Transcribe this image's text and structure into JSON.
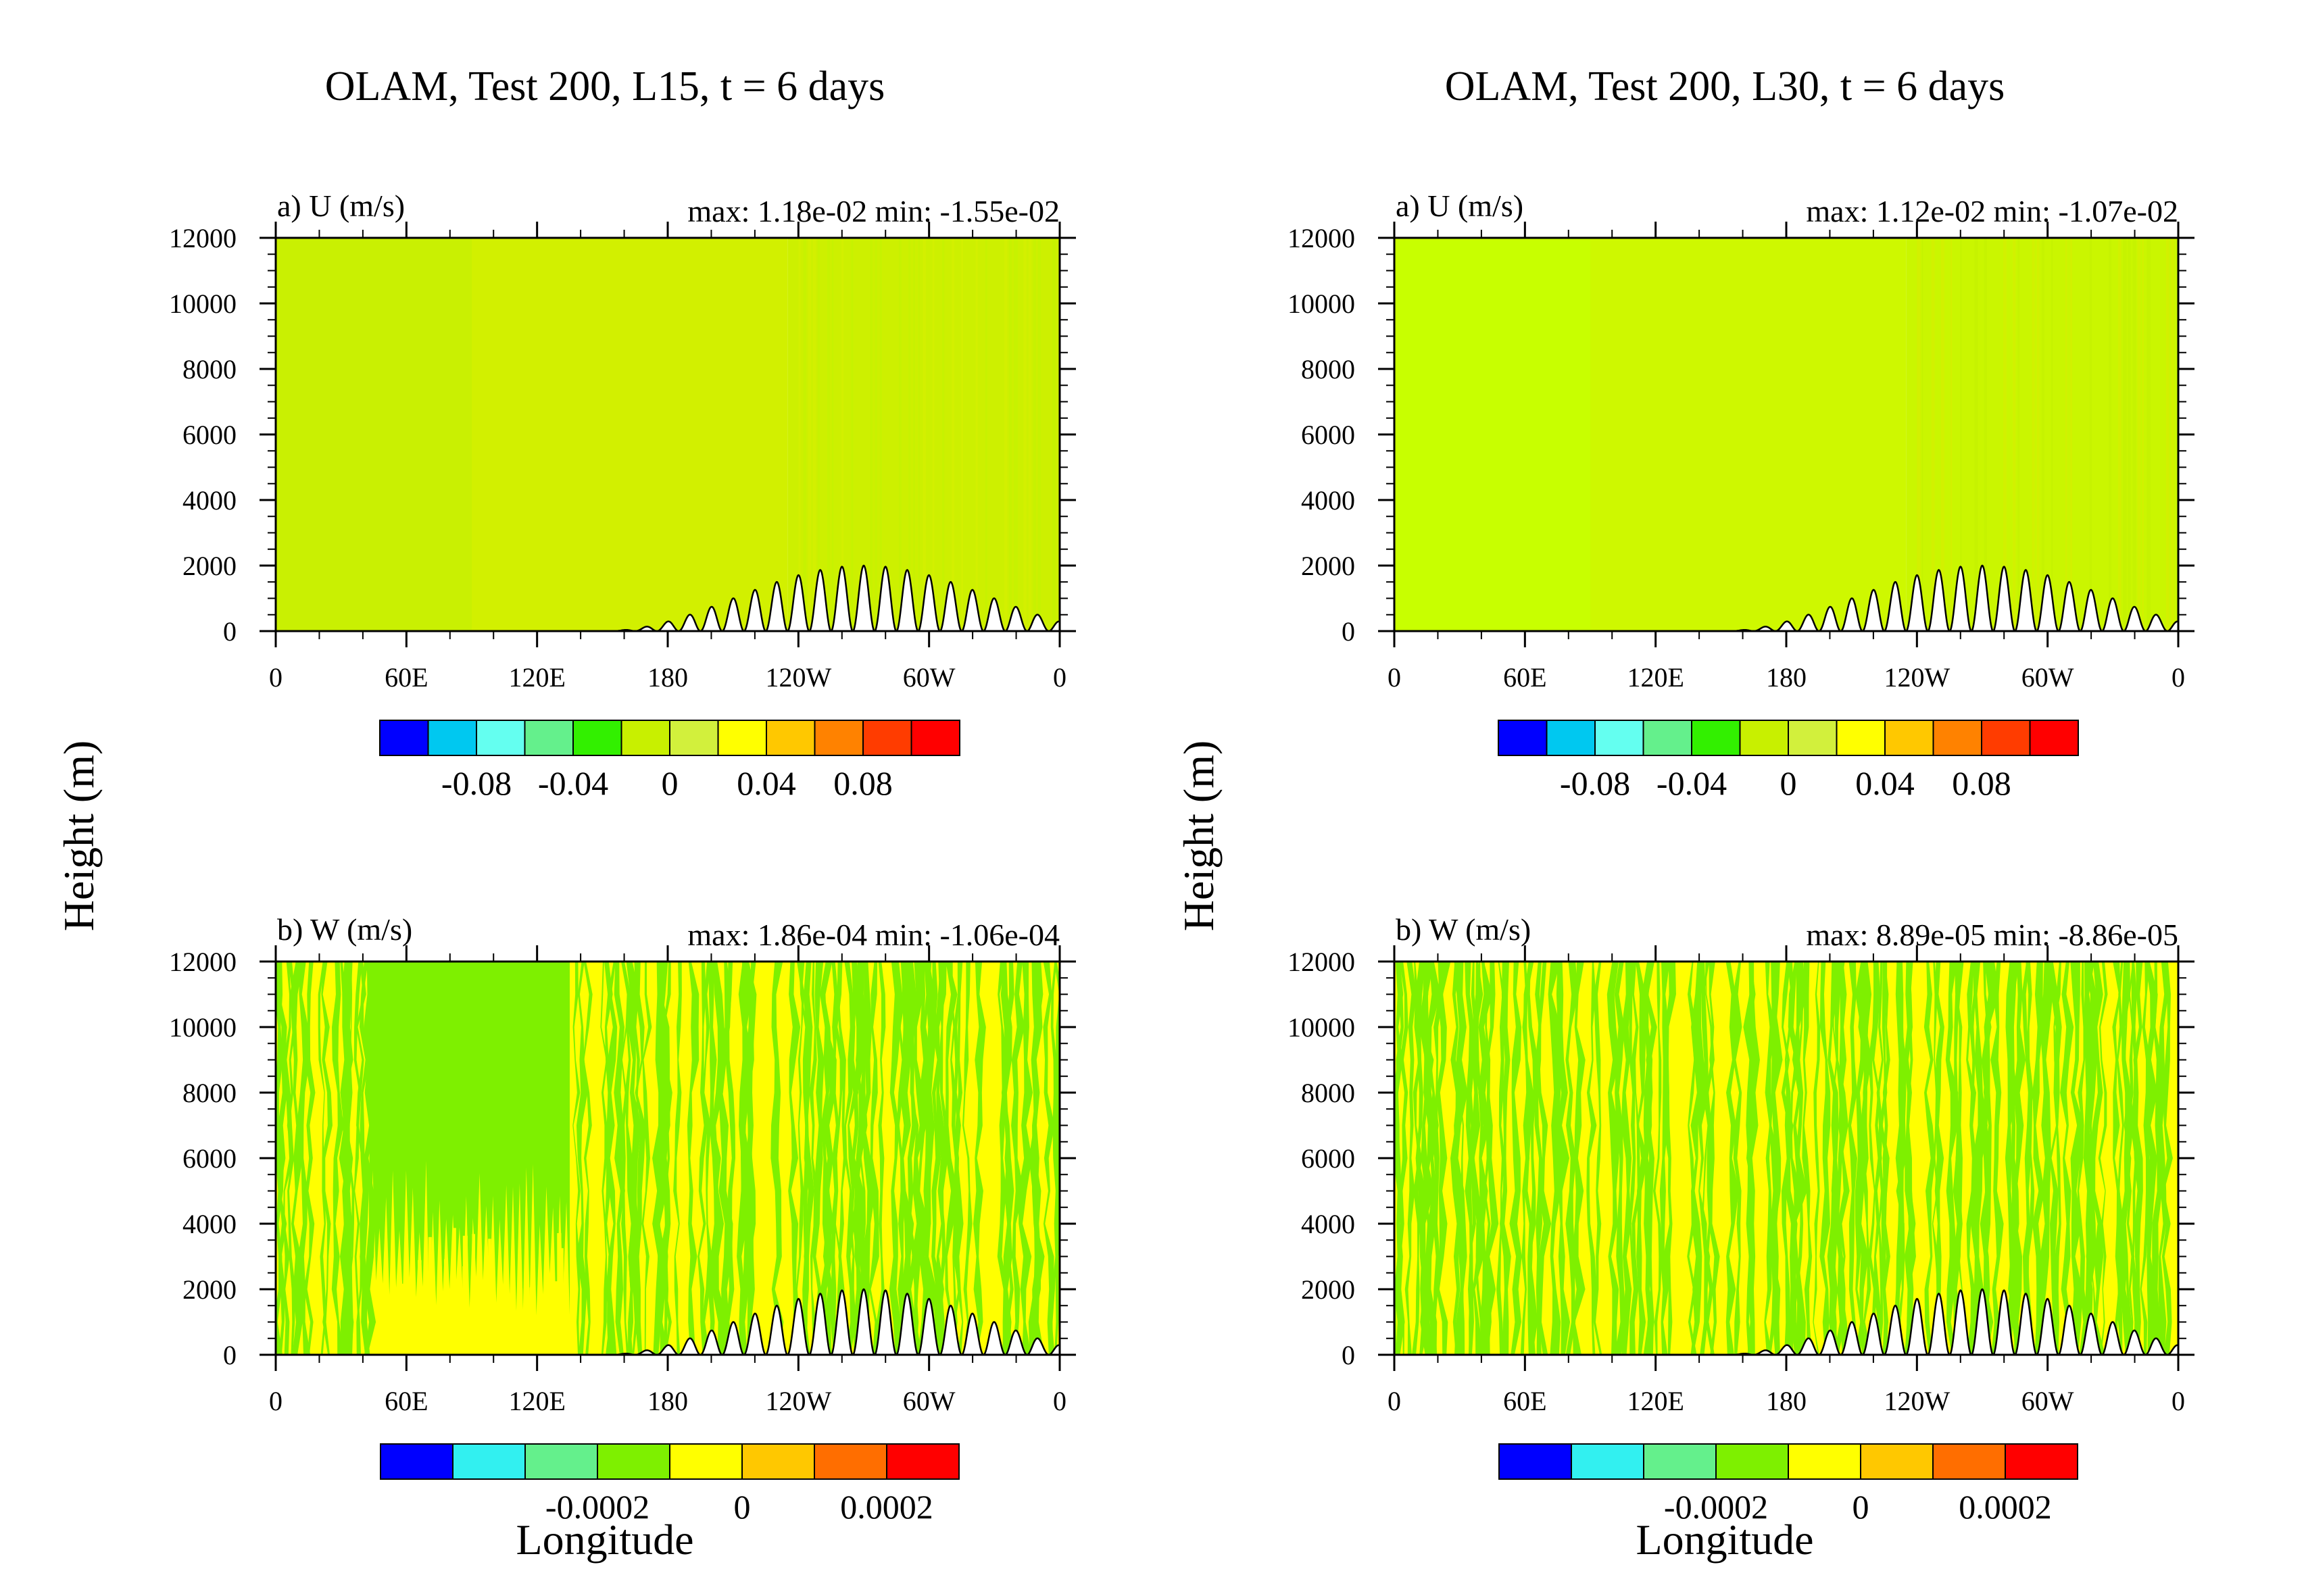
{
  "figure": {
    "columns": [
      {
        "title": "OLAM, Test 200, L15, t = 6 days",
        "ylabel": "Height (m)",
        "xlabel": "Longitude"
      },
      {
        "title": "OLAM, Test 200, L30, t = 6 days",
        "ylabel": "Height (m)",
        "xlabel": "Longitude"
      }
    ]
  },
  "chart_data": [
    {
      "type": "heatmap",
      "column": 0,
      "row": 0,
      "panel_label": "a) U (m/s)",
      "stats": "max: 1.18e-02 min: -1.55e-02",
      "variable": "U",
      "units": "m/s",
      "max": 0.0118,
      "min": -0.0155,
      "x_ticks": [
        "0",
        "60E",
        "120E",
        "180",
        "120W",
        "60W",
        "0"
      ],
      "y_ticks": [
        "0",
        "2000",
        "4000",
        "6000",
        "8000",
        "10000",
        "12000"
      ],
      "xlim": [
        0,
        360
      ],
      "ylim": [
        0,
        12000
      ],
      "pattern": "smooth",
      "dominant_color": "#c8f200",
      "blocks": [
        {
          "x": [
            0,
            90
          ],
          "color": "#c9f002"
        },
        {
          "x": [
            90,
            235
          ],
          "color": "#d2f000"
        },
        {
          "x": [
            235,
            360
          ],
          "color": "#cdf000"
        }
      ],
      "colorbar": {
        "colors": [
          "#0000ff",
          "#00c8f0",
          "#64fff0",
          "#64f08c",
          "#32f000",
          "#c8f000",
          "#d2f03c",
          "#ffff00",
          "#ffc800",
          "#ff8200",
          "#ff3c00",
          "#ff0000"
        ],
        "labels": [
          "-0.08",
          "-0.04",
          "0",
          "0.04",
          "0.08"
        ],
        "label_after_box": [
          1,
          3,
          5,
          7,
          9
        ]
      },
      "terrain": {
        "description": "Schär-type mountain ridge",
        "max_height_m": 2000,
        "center_lon": 270,
        "half_width_deg": 120,
        "wavelength_deg": 10
      }
    },
    {
      "type": "heatmap",
      "column": 0,
      "row": 1,
      "panel_label": "b) W (m/s)",
      "stats": "max: 1.86e-04 min: -1.06e-04",
      "variable": "W",
      "units": "m/s",
      "max": 0.000186,
      "min": -0.000106,
      "x_ticks": [
        "0",
        "60E",
        "120E",
        "180",
        "120W",
        "60W",
        "0"
      ],
      "y_ticks": [
        "0",
        "2000",
        "4000",
        "6000",
        "8000",
        "10000",
        "12000"
      ],
      "xlim": [
        0,
        360
      ],
      "ylim": [
        0,
        12000
      ],
      "pattern": "streaky",
      "calm_region_lon": [
        43,
        135
      ],
      "colorbar": {
        "colors": [
          "#0000ff",
          "#32f0f0",
          "#64f08c",
          "#7ef000",
          "#ffff00",
          "#ffc800",
          "#ff6e00",
          "#ff0000"
        ],
        "labels": [
          "-0.0002",
          "0",
          "0.0002"
        ],
        "label_after_box": [
          2,
          4,
          6
        ]
      },
      "terrain": {
        "description": "Schär-type mountain ridge",
        "max_height_m": 2000,
        "center_lon": 270,
        "half_width_deg": 120,
        "wavelength_deg": 10
      }
    },
    {
      "type": "heatmap",
      "column": 1,
      "row": 0,
      "panel_label": "a) U (m/s)",
      "stats": "max: 1.12e-02 min: -1.07e-02",
      "variable": "U",
      "units": "m/s",
      "max": 0.0112,
      "min": -0.0107,
      "x_ticks": [
        "0",
        "60E",
        "120E",
        "180",
        "120W",
        "60W",
        "0"
      ],
      "y_ticks": [
        "0",
        "2000",
        "4000",
        "6000",
        "8000",
        "10000",
        "12000"
      ],
      "xlim": [
        0,
        360
      ],
      "ylim": [
        0,
        12000
      ],
      "pattern": "smooth",
      "blocks": [
        {
          "x": [
            0,
            90
          ],
          "color": "#c8ff00"
        },
        {
          "x": [
            90,
            235
          ],
          "color": "#cef800"
        },
        {
          "x": [
            235,
            360
          ],
          "color": "#caf600"
        }
      ],
      "colorbar": {
        "colors": [
          "#0000ff",
          "#00c8f0",
          "#64fff0",
          "#64f08c",
          "#32f000",
          "#c8f000",
          "#d2f03c",
          "#ffff00",
          "#ffc800",
          "#ff8200",
          "#ff3c00",
          "#ff0000"
        ],
        "labels": [
          "-0.08",
          "-0.04",
          "0",
          "0.04",
          "0.08"
        ],
        "label_after_box": [
          1,
          3,
          5,
          7,
          9
        ]
      },
      "terrain": {
        "description": "Schär-type mountain ridge",
        "max_height_m": 2000,
        "center_lon": 270,
        "half_width_deg": 120,
        "wavelength_deg": 10
      }
    },
    {
      "type": "heatmap",
      "column": 1,
      "row": 1,
      "panel_label": "b) W (m/s)",
      "stats": "max: 8.89e-05 min: -8.86e-05",
      "variable": "W",
      "units": "m/s",
      "max": 8.89e-05,
      "min": -8.86e-05,
      "x_ticks": [
        "0",
        "60E",
        "120E",
        "180",
        "120W",
        "60W",
        "0"
      ],
      "y_ticks": [
        "0",
        "2000",
        "4000",
        "6000",
        "8000",
        "10000",
        "12000"
      ],
      "xlim": [
        0,
        360
      ],
      "ylim": [
        0,
        12000
      ],
      "pattern": "streaky",
      "calm_region_lon": null,
      "colorbar": {
        "colors": [
          "#0000ff",
          "#32f0f0",
          "#64f08c",
          "#7ef000",
          "#ffff00",
          "#ffc800",
          "#ff6e00",
          "#ff0000"
        ],
        "labels": [
          "-0.0002",
          "0",
          "0.0002"
        ],
        "label_after_box": [
          2,
          4,
          6
        ]
      },
      "terrain": {
        "description": "Schär-type mountain ridge",
        "max_height_m": 2000,
        "center_lon": 270,
        "half_width_deg": 120,
        "wavelength_deg": 10
      }
    }
  ]
}
